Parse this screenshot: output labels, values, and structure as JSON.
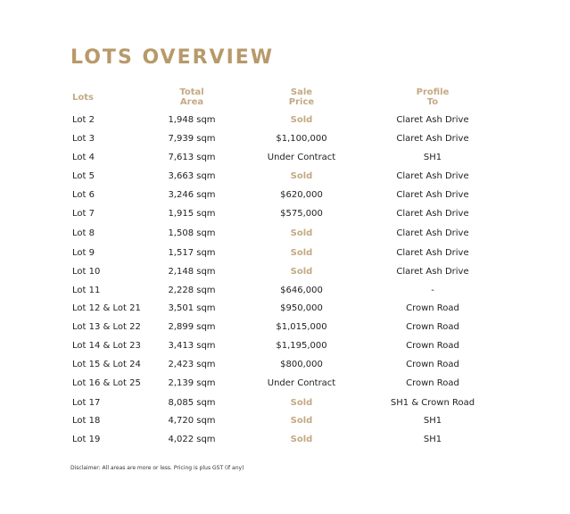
{
  "title": "LOTS OVERVIEW",
  "accent_color": "#b8996a",
  "headers": [
    "Lots",
    "Total\nArea",
    "Sale\nPrice",
    "Profile\nTo"
  ],
  "header_lines": [
    [
      "Lots"
    ],
    [
      "Total",
      "Area"
    ],
    [
      "Sale",
      "Price"
    ],
    [
      "Profile",
      "To"
    ]
  ],
  "rows": [
    {
      "lot": "Lot 2",
      "area": "1,948 sqm",
      "price": "Sold",
      "profile": "Claret Ash Drive"
    },
    {
      "lot": "Lot 3",
      "area": "7,939 sqm",
      "price": "$1,100,000",
      "profile": "Claret Ash Drive"
    },
    {
      "lot": "Lot 4",
      "area": "7,613 sqm",
      "price": "Under Contract",
      "profile": "SH1"
    },
    {
      "lot": "Lot 5",
      "area": "3,663 sqm",
      "price": "Sold",
      "profile": "Claret Ash Drive"
    },
    {
      "lot": "Lot 6",
      "area": "3,246 sqm",
      "price": "$620,000",
      "profile": "Claret Ash Drive"
    },
    {
      "lot": "Lot 7",
      "area": "1,915 sqm",
      "price": "$575,000",
      "profile": "Claret Ash Drive"
    },
    {
      "lot": "Lot 8",
      "area": "1,508 sqm",
      "price": "Sold",
      "profile": "Claret Ash Drive"
    },
    {
      "lot": "Lot 9",
      "area": "1,517 sqm",
      "price": "Sold",
      "profile": "Claret Ash Drive"
    },
    {
      "lot": "Lot 10",
      "area": "2,148 sqm",
      "price": "Sold",
      "profile": "Claret Ash Drive"
    },
    {
      "lot": "Lot 11",
      "area": "2,228 sqm",
      "price": "$646,000",
      "profile": "-"
    },
    {
      "lot": "Lot 12 & Lot 21",
      "area": "3,501 sqm",
      "price": "$950,000",
      "profile": "Crown Road"
    },
    {
      "lot": "Lot 13 & Lot 22",
      "area": "2,899 sqm",
      "price": "$1,015,000",
      "profile": "Crown Road"
    },
    {
      "lot": "Lot 14 & Lot 23",
      "area": "3,413 sqm",
      "price": "$1,195,000",
      "profile": "Crown Road"
    },
    {
      "lot": "Lot 15 & Lot 24",
      "area": "2,423 sqm",
      "price": "$800,000",
      "profile": "Crown Road"
    },
    {
      "lot": "Lot 16 & Lot 25",
      "area": "2,139 sqm",
      "price": "Under Contract",
      "profile": "Crown Road"
    },
    {
      "lot": "Lot 17",
      "area": "8,085 sqm",
      "price": "Sold",
      "profile": "SH1 & Crown Road"
    },
    {
      "lot": "Lot 18",
      "area": "4,720 sqm",
      "price": "Sold",
      "profile": "SH1"
    },
    {
      "lot": "Lot 19",
      "area": "4,022 sqm",
      "price": "Sold",
      "profile": "SH1"
    }
  ],
  "disclaimer": "Disclaimer: All areas are more or less. Pricing is plus GST (if any)"
}
